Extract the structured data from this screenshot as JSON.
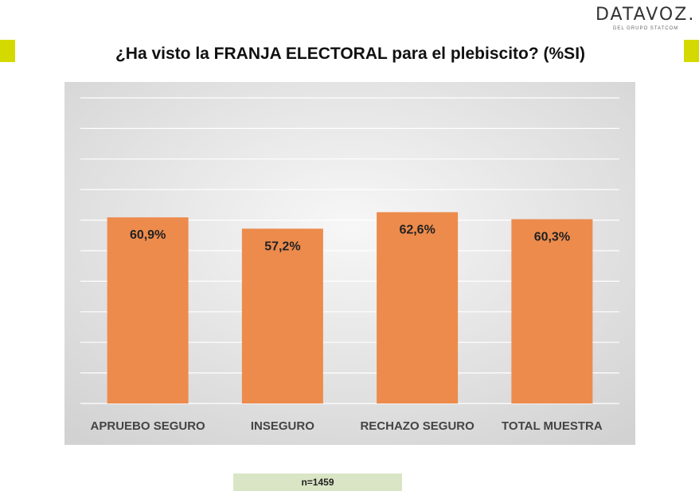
{
  "header": {
    "logo_text": "DATAVOZ.",
    "logo_subtext": "DEL GRUPO STATCOM",
    "accent_color": "#d4d900"
  },
  "chart_data": {
    "type": "bar",
    "title": "¿Ha visto la FRANJA ELECTORAL para el plebiscito? (%SI)",
    "categories": [
      "APRUEBO SEGURO",
      "INSEGURO",
      "RECHAZO SEGURO",
      "TOTAL MUESTRA"
    ],
    "values": [
      60.9,
      57.2,
      62.6,
      60.3
    ],
    "value_labels": [
      "60,9%",
      "57,2%",
      "62,6%",
      "60,3%"
    ],
    "ylim": [
      0,
      100
    ],
    "grid": true,
    "bar_color": "#ed8b4c",
    "background_color": "#e4e4e4"
  },
  "footer": {
    "sample_size": "n=1459"
  }
}
